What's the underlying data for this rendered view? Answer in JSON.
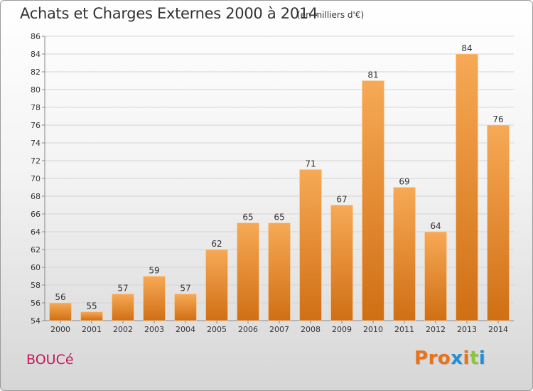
{
  "header": {
    "title": "Achats et Charges Externes 2000 à 2014",
    "subtitle": "(en milliers d'€)"
  },
  "footer": {
    "place": "BOUCé",
    "logo_text": "Proxiti"
  },
  "colors": {
    "bar_top": "#f7a955",
    "bar_bottom": "#d06f14",
    "place_text": "#c2185b",
    "logo_letters": [
      "#e8731a",
      "#e8731a",
      "#e8731a",
      "#1f8fd6",
      "#e8731a",
      "#8cc63f",
      "#1f8fd6"
    ]
  },
  "chart_data": {
    "type": "bar",
    "categories": [
      "2000",
      "2001",
      "2002",
      "2003",
      "2004",
      "2005",
      "2006",
      "2007",
      "2008",
      "2009",
      "2010",
      "2011",
      "2012",
      "2013",
      "2014"
    ],
    "values": [
      56,
      55,
      57,
      59,
      57,
      62,
      65,
      65,
      71,
      67,
      81,
      69,
      64,
      84,
      76
    ],
    "ylim": [
      54,
      86
    ],
    "yticks": [
      54,
      56,
      58,
      60,
      62,
      64,
      66,
      68,
      70,
      72,
      74,
      76,
      78,
      80,
      82,
      84,
      86
    ],
    "grid": true,
    "data_labels": true
  }
}
